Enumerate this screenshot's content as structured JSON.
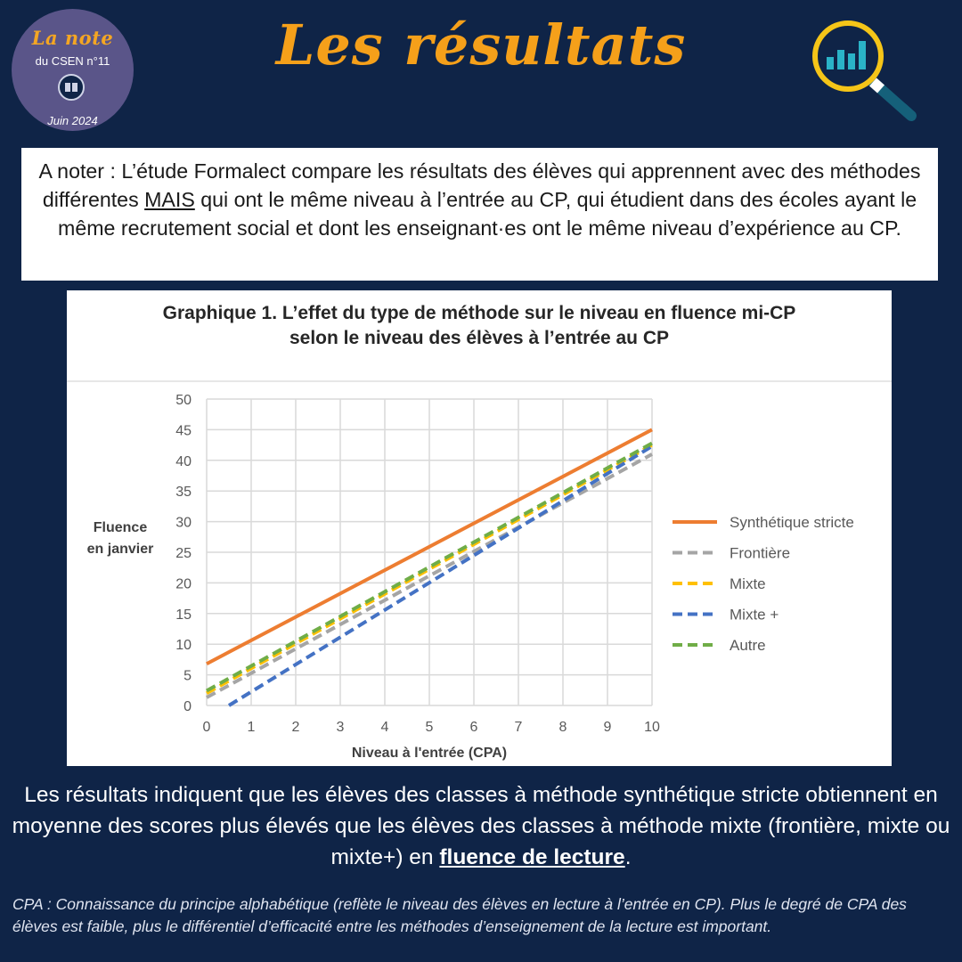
{
  "badge": {
    "brand": "La note",
    "issue": "du CSEN n°11",
    "date": "Juin 2024"
  },
  "header": {
    "title": "Les résultats"
  },
  "note": {
    "prefix": "A noter : L’étude Formalect compare les résultats des élèves qui apprennent avec des méthodes différentes ",
    "emphasis": "MAIS",
    "suffix": " qui ont le même niveau à l’entrée au CP, qui étudient dans des écoles ayant le même recrutement social et dont les enseignant·es ont le même niveau d’expérience au CP."
  },
  "chart_data": {
    "type": "line",
    "title_line1": "Graphique 1. L’effet du type de méthode sur le niveau en fluence mi-CP",
    "title_line2": "selon le niveau des élèves à l’entrée au CP",
    "xlabel": "Niveau à l'entrée (CPA)",
    "ylabel_line1": "Fluence",
    "ylabel_line2": "en janvier",
    "xlim": [
      0,
      10
    ],
    "ylim": [
      0,
      50
    ],
    "xticks": [
      "0",
      "1",
      "2",
      "3",
      "4",
      "5",
      "6",
      "7",
      "8",
      "9",
      "10"
    ],
    "yticks": [
      "0",
      "5",
      "10",
      "15",
      "20",
      "25",
      "30",
      "35",
      "40",
      "45",
      "50"
    ],
    "grid": true,
    "legend_position": "right",
    "series": [
      {
        "name": "Synthétique stricte",
        "color": "#ed7d31",
        "dashed": false,
        "x": [
          0,
          10
        ],
        "y": [
          6.8,
          45.0
        ]
      },
      {
        "name": "Frontière",
        "color": "#a5a5a5",
        "dashed": true,
        "x": [
          0,
          10
        ],
        "y": [
          1.3,
          41.0
        ]
      },
      {
        "name": "Mixte",
        "color": "#ffc000",
        "dashed": true,
        "x": [
          0,
          10
        ],
        "y": [
          2.0,
          42.5
        ]
      },
      {
        "name": "Mixte +",
        "color": "#4472c4",
        "dashed": true,
        "x": [
          0.5,
          10
        ],
        "y": [
          0,
          42.3
        ]
      },
      {
        "name": "Autre",
        "color": "#70ad47",
        "dashed": true,
        "x": [
          0,
          10
        ],
        "y": [
          2.4,
          42.8
        ]
      }
    ]
  },
  "conclusion": {
    "text": "Les résultats indiquent que les élèves des classes à méthode synthétique stricte obtiennent en moyenne des scores plus élevés que les élèves des classes à méthode mixte (frontière, mixte ou mixte+) en ",
    "highlight": "fluence de lecture",
    "end": "."
  },
  "footnote": "CPA : Connaissance du principe alphabétique (reflète le niveau des élèves en lecture à l’entrée en CP). Plus le degré de CPA des élèves est faible, plus le différentiel d’efficacité entre les méthodes d’enseignement de la lecture est important.",
  "colors": {
    "background": "#0f2447",
    "accent": "#f5a01a",
    "badge": "#5a5589"
  },
  "icons": {
    "badge": "book-icon",
    "header": "magnifier-chart-icon"
  }
}
